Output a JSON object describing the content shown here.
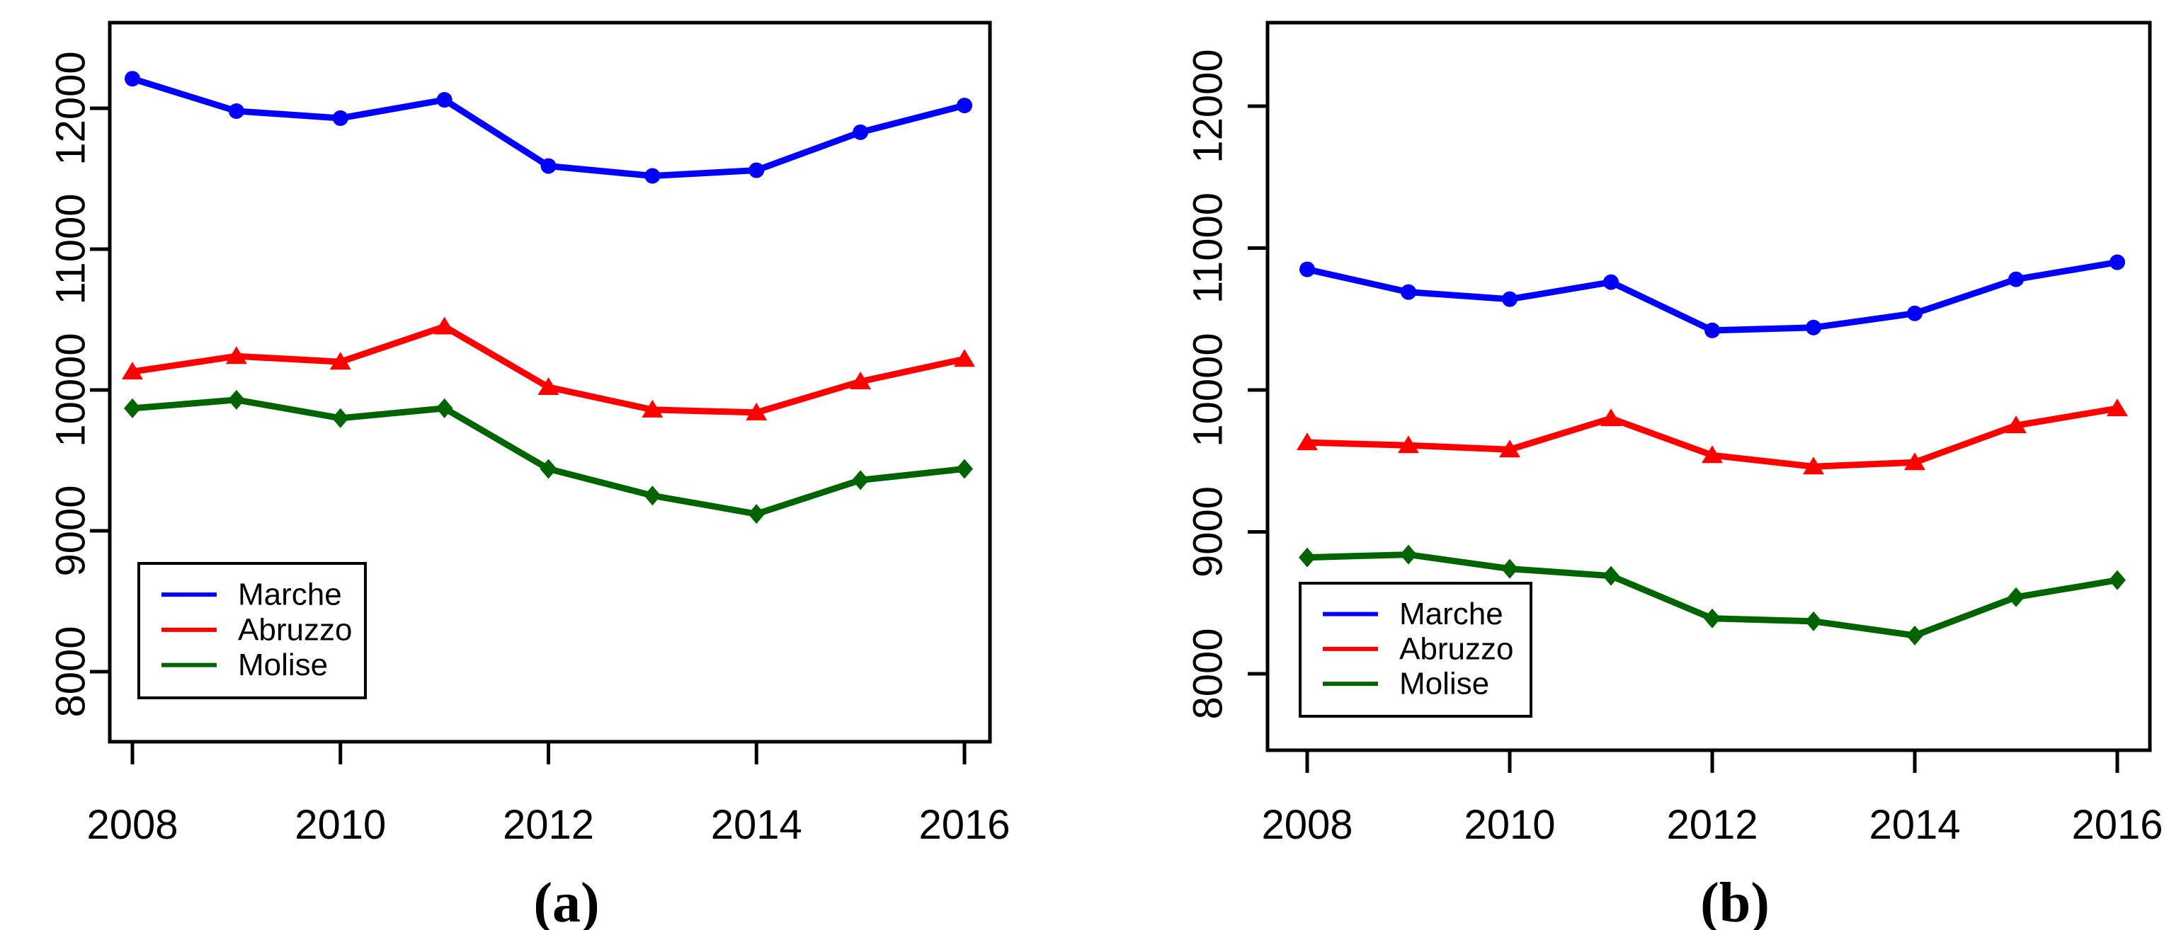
{
  "figure": {
    "background": "#ffffff",
    "description": "Two side-by-side R line plots comparing three Italian regions over years 2008-2016"
  },
  "chart_data": [
    {
      "type": "line",
      "panel_label": "(a)",
      "title": "",
      "xlabel": "",
      "ylabel": "",
      "x": [
        2008,
        2009,
        2010,
        2011,
        2012,
        2013,
        2014,
        2015,
        2016
      ],
      "x_tick_labels": [
        "2008",
        "2010",
        "2012",
        "2014",
        "2016"
      ],
      "x_tick_years": [
        2008,
        2010,
        2012,
        2014,
        2016
      ],
      "y_tick_labels": [
        "8000",
        "9000",
        "10000",
        "11000",
        "12000"
      ],
      "y_tick_values": [
        8000,
        9000,
        10000,
        11000,
        12000
      ],
      "ylim": [
        7500,
        12610
      ],
      "xlim": [
        2007.8,
        2016.4
      ],
      "grid": false,
      "legend_position": "lower-left",
      "series": [
        {
          "name": "Marche",
          "color": "#0000ff",
          "marker": "circle",
          "values": [
            12210,
            11980,
            11930,
            12060,
            11590,
            11520,
            11560,
            11830,
            12020
          ]
        },
        {
          "name": "Abruzzo",
          "color": "#ff0000",
          "marker": "triangle",
          "values": [
            10130,
            10240,
            10200,
            10450,
            10020,
            9860,
            9840,
            10060,
            10220
          ]
        },
        {
          "name": "Molise",
          "color": "#006400",
          "marker": "diamond",
          "values": [
            9870,
            9930,
            9800,
            9870,
            9440,
            9250,
            9120,
            9360,
            9440
          ]
        }
      ]
    },
    {
      "type": "line",
      "panel_label": "(b)",
      "title": "",
      "xlabel": "",
      "ylabel": "",
      "x": [
        2008,
        2009,
        2010,
        2011,
        2012,
        2013,
        2014,
        2015,
        2016
      ],
      "x_tick_labels": [
        "2008",
        "2010",
        "2012",
        "2014",
        "2016"
      ],
      "x_tick_years": [
        2008,
        2010,
        2012,
        2014,
        2016
      ],
      "y_tick_labels": [
        "8000",
        "9000",
        "10000",
        "11000",
        "12000"
      ],
      "y_tick_values": [
        8000,
        9000,
        10000,
        11000,
        12000
      ],
      "ylim": [
        7450,
        12590
      ],
      "xlim": [
        2007.7,
        2016.3
      ],
      "grid": false,
      "legend_position": "lower-left",
      "series": [
        {
          "name": "Marche",
          "color": "#0000ff",
          "marker": "circle",
          "values": [
            10850,
            10690,
            10640,
            10760,
            10420,
            10440,
            10540,
            10780,
            10900
          ]
        },
        {
          "name": "Abruzzo",
          "color": "#ff0000",
          "marker": "triangle",
          "values": [
            9630,
            9610,
            9580,
            9800,
            9540,
            9460,
            9490,
            9750,
            9870
          ]
        },
        {
          "name": "Molise",
          "color": "#006400",
          "marker": "diamond",
          "values": [
            8820,
            8840,
            8740,
            8690,
            8390,
            8370,
            8270,
            8540,
            8660
          ]
        }
      ]
    }
  ]
}
